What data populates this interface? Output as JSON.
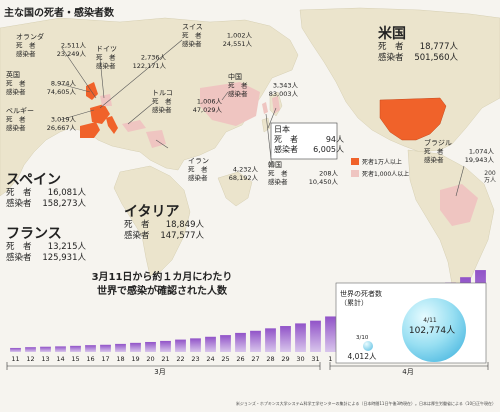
{
  "chart_data": [
    {
      "type": "table",
      "title": "主な国の死者・感染者数",
      "death_label": "死　者",
      "case_label": "感染者",
      "countries": [
        {
          "name": "スイス",
          "deaths": "1,002人",
          "cases": "24,551人"
        },
        {
          "name": "オランダ",
          "deaths": "2,511人",
          "cases": "23,249人"
        },
        {
          "name": "ドイツ",
          "deaths": "2,736人",
          "cases": "122,171人"
        },
        {
          "name": "英国",
          "deaths": "8,974人",
          "cases": "74,605人"
        },
        {
          "name": "ベルギー",
          "deaths": "3,019人",
          "cases": "26,667人"
        },
        {
          "name": "トルコ",
          "deaths": "1,006人",
          "cases": "47,029人"
        },
        {
          "name": "中国",
          "deaths": "3,343人",
          "cases": "83,003人"
        },
        {
          "name": "米国",
          "deaths": "18,777人",
          "cases": "501,560人"
        },
        {
          "name": "日本",
          "deaths": "94人",
          "cases": "6,005人"
        },
        {
          "name": "イラン",
          "deaths": "4,232人",
          "cases": "68,192人"
        },
        {
          "name": "韓国",
          "deaths": "208人",
          "cases": "10,450人"
        },
        {
          "name": "ブラジル",
          "deaths": "1,074人",
          "cases": "19,943人"
        },
        {
          "name": "スペイン",
          "deaths": "16,081人",
          "cases": "158,273人"
        },
        {
          "name": "イタリア",
          "deaths": "18,849人",
          "cases": "147,577人"
        },
        {
          "name": "フランス",
          "deaths": "13,215人",
          "cases": "125,931人"
        }
      ],
      "legend": [
        {
          "label": "死者1万人以上",
          "color": "#f0622a"
        },
        {
          "label": "死者1,000人以上",
          "color": "#efc5c1"
        }
      ]
    },
    {
      "type": "bar",
      "title": "3月11日から約１カ月にわたり\n世界で感染が確認された人数",
      "categories": [
        "11",
        "12",
        "13",
        "14",
        "15",
        "16",
        "17",
        "18",
        "19",
        "20",
        "21",
        "22",
        "23",
        "24",
        "25",
        "26",
        "27",
        "28",
        "29",
        "30",
        "31",
        "1",
        "2",
        "3",
        "4",
        "5",
        "6",
        "7",
        "8",
        "9",
        "10",
        "11"
      ],
      "values": [
        4600,
        5500,
        6000,
        6400,
        7000,
        7800,
        8200,
        9200,
        10400,
        11400,
        12600,
        14100,
        15500,
        17300,
        19200,
        21700,
        24100,
        26900,
        29500,
        32500,
        35600,
        40400,
        44800,
        49700,
        54400,
        59300,
        62700,
        66300,
        72400,
        78800,
        85000,
        93100
      ],
      "ylim": [
        0,
        100
      ],
      "y_unit": "200\n万人",
      "month_labels": [
        "3月",
        "4月"
      ],
      "bar_color": "#9b68c9",
      "inset": {
        "title": "世界の死者数\n（累計）",
        "small_date": "3/10",
        "small_value": "4,012人",
        "big_date": "4/11",
        "big_value": "102,774人"
      }
    }
  ],
  "source": "米ジョンズ・ホプキンス大学システム科学工学センターの集計による（日本時間11日午後3時現在）。日本は厚生労働省による（10日正午現在）"
}
